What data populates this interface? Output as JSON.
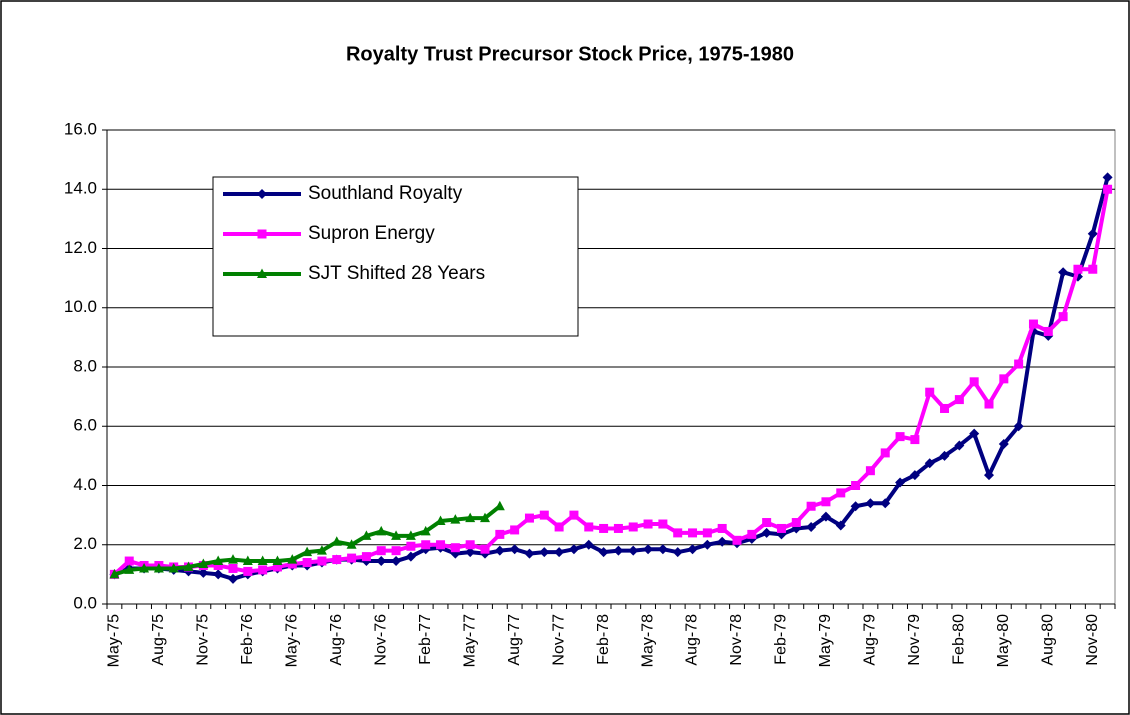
{
  "chart_data": {
    "type": "line",
    "title": "Royalty Trust Precursor Stock Price, 1975-1980",
    "categories": [
      "May-75",
      null,
      null,
      "Aug-75",
      null,
      null,
      "Nov-75",
      null,
      null,
      "Feb-76",
      null,
      null,
      "May-76",
      null,
      null,
      "Aug-76",
      null,
      null,
      "Nov-76",
      null,
      null,
      "Feb-77",
      null,
      null,
      "May-77",
      null,
      null,
      "Aug-77",
      null,
      null,
      "Nov-77",
      null,
      null,
      "Feb-78",
      null,
      null,
      "May-78",
      null,
      null,
      "Aug-78",
      null,
      null,
      "Nov-78",
      null,
      null,
      "Feb-79",
      null,
      null,
      "May-79",
      null,
      null,
      "Aug-79",
      null,
      null,
      "Nov-79",
      null,
      null,
      "Feb-80",
      null,
      null,
      "May-80",
      null,
      null,
      "Aug-80",
      null,
      null,
      "Nov-80",
      null
    ],
    "series": [
      {
        "name": "Southland Royalty",
        "color": "#000080",
        "marker": "diamond",
        "values": [
          1.0,
          1.2,
          1.2,
          1.2,
          1.15,
          1.1,
          1.05,
          1.0,
          0.85,
          1.0,
          1.1,
          1.2,
          1.3,
          1.3,
          1.4,
          1.5,
          1.5,
          1.45,
          1.45,
          1.45,
          1.6,
          1.85,
          1.9,
          1.7,
          1.75,
          1.7,
          1.8,
          1.85,
          1.7,
          1.75,
          1.75,
          1.85,
          2.0,
          1.75,
          1.8,
          1.8,
          1.85,
          1.85,
          1.75,
          1.85,
          2.0,
          2.1,
          2.05,
          2.2,
          2.4,
          2.35,
          2.55,
          2.6,
          2.95,
          2.65,
          3.3,
          3.4,
          3.4,
          4.1,
          4.35,
          4.75,
          5.0,
          5.35,
          5.75,
          4.35,
          5.4,
          6.0,
          9.2,
          9.05,
          11.2,
          11.05,
          12.5,
          14.4
        ]
      },
      {
        "name": "Supron Energy",
        "color": "#ff00ff",
        "marker": "square",
        "values": [
          1.0,
          1.45,
          1.3,
          1.3,
          1.25,
          1.25,
          1.3,
          1.3,
          1.2,
          1.1,
          1.15,
          1.25,
          1.35,
          1.4,
          1.45,
          1.5,
          1.55,
          1.6,
          1.8,
          1.8,
          1.95,
          2.0,
          2.0,
          1.9,
          2.0,
          1.85,
          2.35,
          2.5,
          2.9,
          3.0,
          2.6,
          3.0,
          2.6,
          2.55,
          2.55,
          2.6,
          2.7,
          2.7,
          2.4,
          2.4,
          2.4,
          2.55,
          2.15,
          2.35,
          2.75,
          2.55,
          2.75,
          3.3,
          3.45,
          3.75,
          4.0,
          4.5,
          5.1,
          5.65,
          5.55,
          7.15,
          6.6,
          6.9,
          7.5,
          6.75,
          7.6,
          8.1,
          9.45,
          9.2,
          9.7,
          11.3,
          11.3,
          14.0
        ]
      },
      {
        "name": "SJT Shifted 28 Years",
        "color": "#008000",
        "marker": "triangle",
        "values": [
          1.0,
          1.15,
          1.2,
          1.2,
          1.2,
          1.25,
          1.35,
          1.45,
          1.5,
          1.45,
          1.45,
          1.45,
          1.5,
          1.75,
          1.8,
          2.1,
          2.0,
          2.3,
          2.45,
          2.3,
          2.3,
          2.45,
          2.8,
          2.85,
          2.9,
          2.9,
          3.3,
          null,
          null,
          null,
          null,
          null,
          null,
          null,
          null,
          null,
          null,
          null,
          null,
          null,
          null,
          null,
          null,
          null,
          null,
          null,
          null,
          null,
          null,
          null,
          null,
          null,
          null,
          null,
          null,
          null,
          null,
          null,
          null,
          null,
          null,
          null,
          null,
          null,
          null,
          null,
          null,
          null
        ]
      }
    ],
    "ylim": [
      0,
      16
    ],
    "yticks": [
      {
        "value": 0,
        "label": "0.0"
      },
      {
        "value": 2,
        "label": "2.0"
      },
      {
        "value": 4,
        "label": "4.0"
      },
      {
        "value": 6,
        "label": "6.0"
      },
      {
        "value": 8,
        "label": "8.0"
      },
      {
        "value": 10,
        "label": "10.0"
      },
      {
        "value": 12,
        "label": "12.0"
      },
      {
        "value": 14,
        "label": "14.0"
      },
      {
        "value": 16,
        "label": "16.0"
      }
    ],
    "grid": true,
    "legend": "upper left"
  }
}
